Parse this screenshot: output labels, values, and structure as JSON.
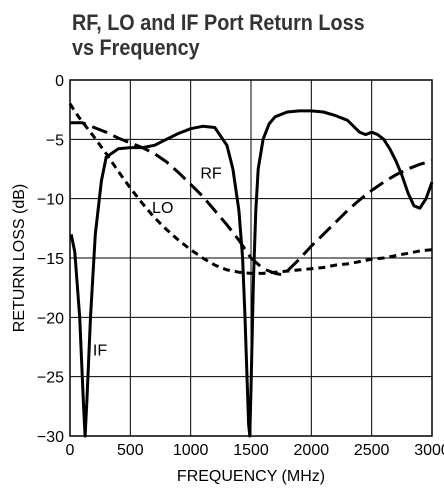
{
  "chart_data": {
    "type": "line",
    "title_lines": [
      "RF, LO and IF Port Return Loss",
      "vs Frequency"
    ],
    "xlabel": "FREQUENCY (MHz)",
    "ylabel": "RETURN LOSS (dB)",
    "xlim": [
      0,
      3000
    ],
    "ylim": [
      -30,
      0
    ],
    "xticks": [
      0,
      500,
      1000,
      1500,
      2000,
      2500,
      3000
    ],
    "yticks": [
      0,
      -5,
      -10,
      -15,
      -20,
      -25,
      -30
    ],
    "grid": true,
    "series": [
      {
        "name": "RF",
        "style": "long-dash",
        "x": [
          0,
          100,
          200,
          300,
          400,
          500,
          600,
          700,
          800,
          900,
          1000,
          1100,
          1200,
          1300,
          1400,
          1500,
          1600,
          1700,
          1750,
          1800,
          1900,
          2000,
          2100,
          2200,
          2300,
          2400,
          2500,
          2600,
          2700,
          2800,
          2900,
          3000
        ],
        "y": [
          -3.6,
          -3.6,
          -4.0,
          -4.4,
          -4.9,
          -5.3,
          -5.7,
          -6.2,
          -6.9,
          -7.8,
          -8.8,
          -9.8,
          -11.0,
          -12.2,
          -13.5,
          -15.0,
          -15.9,
          -16.3,
          -16.4,
          -16.1,
          -15.1,
          -14.0,
          -13.0,
          -12.0,
          -11.0,
          -10.1,
          -9.3,
          -8.6,
          -8.0,
          -7.5,
          -7.1,
          -6.8
        ]
      },
      {
        "name": "LO",
        "style": "short-dash",
        "x": [
          0,
          50,
          100,
          200,
          300,
          400,
          500,
          600,
          700,
          800,
          900,
          1000,
          1100,
          1200,
          1300,
          1400,
          1500,
          1600,
          1700,
          1800,
          1900,
          2000,
          2100,
          2200,
          2300,
          2400,
          2500,
          2600,
          2700,
          2800,
          2900,
          3000
        ],
        "y": [
          -2.0,
          -2.8,
          -3.5,
          -4.8,
          -6.2,
          -7.7,
          -9.1,
          -10.4,
          -11.6,
          -12.6,
          -13.5,
          -14.3,
          -15.0,
          -15.6,
          -16.0,
          -16.2,
          -16.3,
          -16.3,
          -16.2,
          -16.1,
          -16.0,
          -15.9,
          -15.8,
          -15.6,
          -15.5,
          -15.3,
          -15.1,
          -15.0,
          -14.8,
          -14.6,
          -14.4,
          -14.3
        ]
      },
      {
        "name": "IF",
        "style": "solid",
        "x": [
          10,
          40,
          80,
          110,
          125,
          140,
          170,
          210,
          260,
          300,
          400,
          500,
          600,
          700,
          800,
          900,
          1000,
          1100,
          1200,
          1300,
          1350,
          1400,
          1430,
          1450,
          1470,
          1480,
          1490,
          1500,
          1520,
          1540,
          1560,
          1600,
          1650,
          1700,
          1800,
          1900,
          2000,
          2100,
          2200,
          2300,
          2400,
          2450,
          2500,
          2550,
          2600,
          2650,
          2700,
          2750,
          2800,
          2850,
          2900,
          2950,
          3000
        ],
        "y": [
          -13.0,
          -14.5,
          -20.0,
          -27.0,
          -30.0,
          -27.0,
          -20.0,
          -13.0,
          -8.5,
          -6.5,
          -5.8,
          -5.7,
          -5.7,
          -5.5,
          -5.0,
          -4.5,
          -4.1,
          -3.9,
          -4.0,
          -5.5,
          -7.5,
          -11.0,
          -15.0,
          -20.0,
          -26.0,
          -29.0,
          -30.0,
          -26.0,
          -17.0,
          -11.0,
          -7.5,
          -5.0,
          -3.7,
          -3.1,
          -2.7,
          -2.6,
          -2.6,
          -2.7,
          -3.0,
          -3.4,
          -4.4,
          -4.6,
          -4.4,
          -4.6,
          -5.0,
          -5.8,
          -6.8,
          -8.0,
          -9.5,
          -10.6,
          -10.8,
          -10.0,
          -8.6
        ]
      }
    ],
    "annotations": [
      {
        "text": "RF",
        "x": 1080,
        "y": -7.8
      },
      {
        "text": "LO",
        "x": 680,
        "y": -10.7
      },
      {
        "text": "IF",
        "x": 190,
        "y": -22.7
      }
    ]
  }
}
